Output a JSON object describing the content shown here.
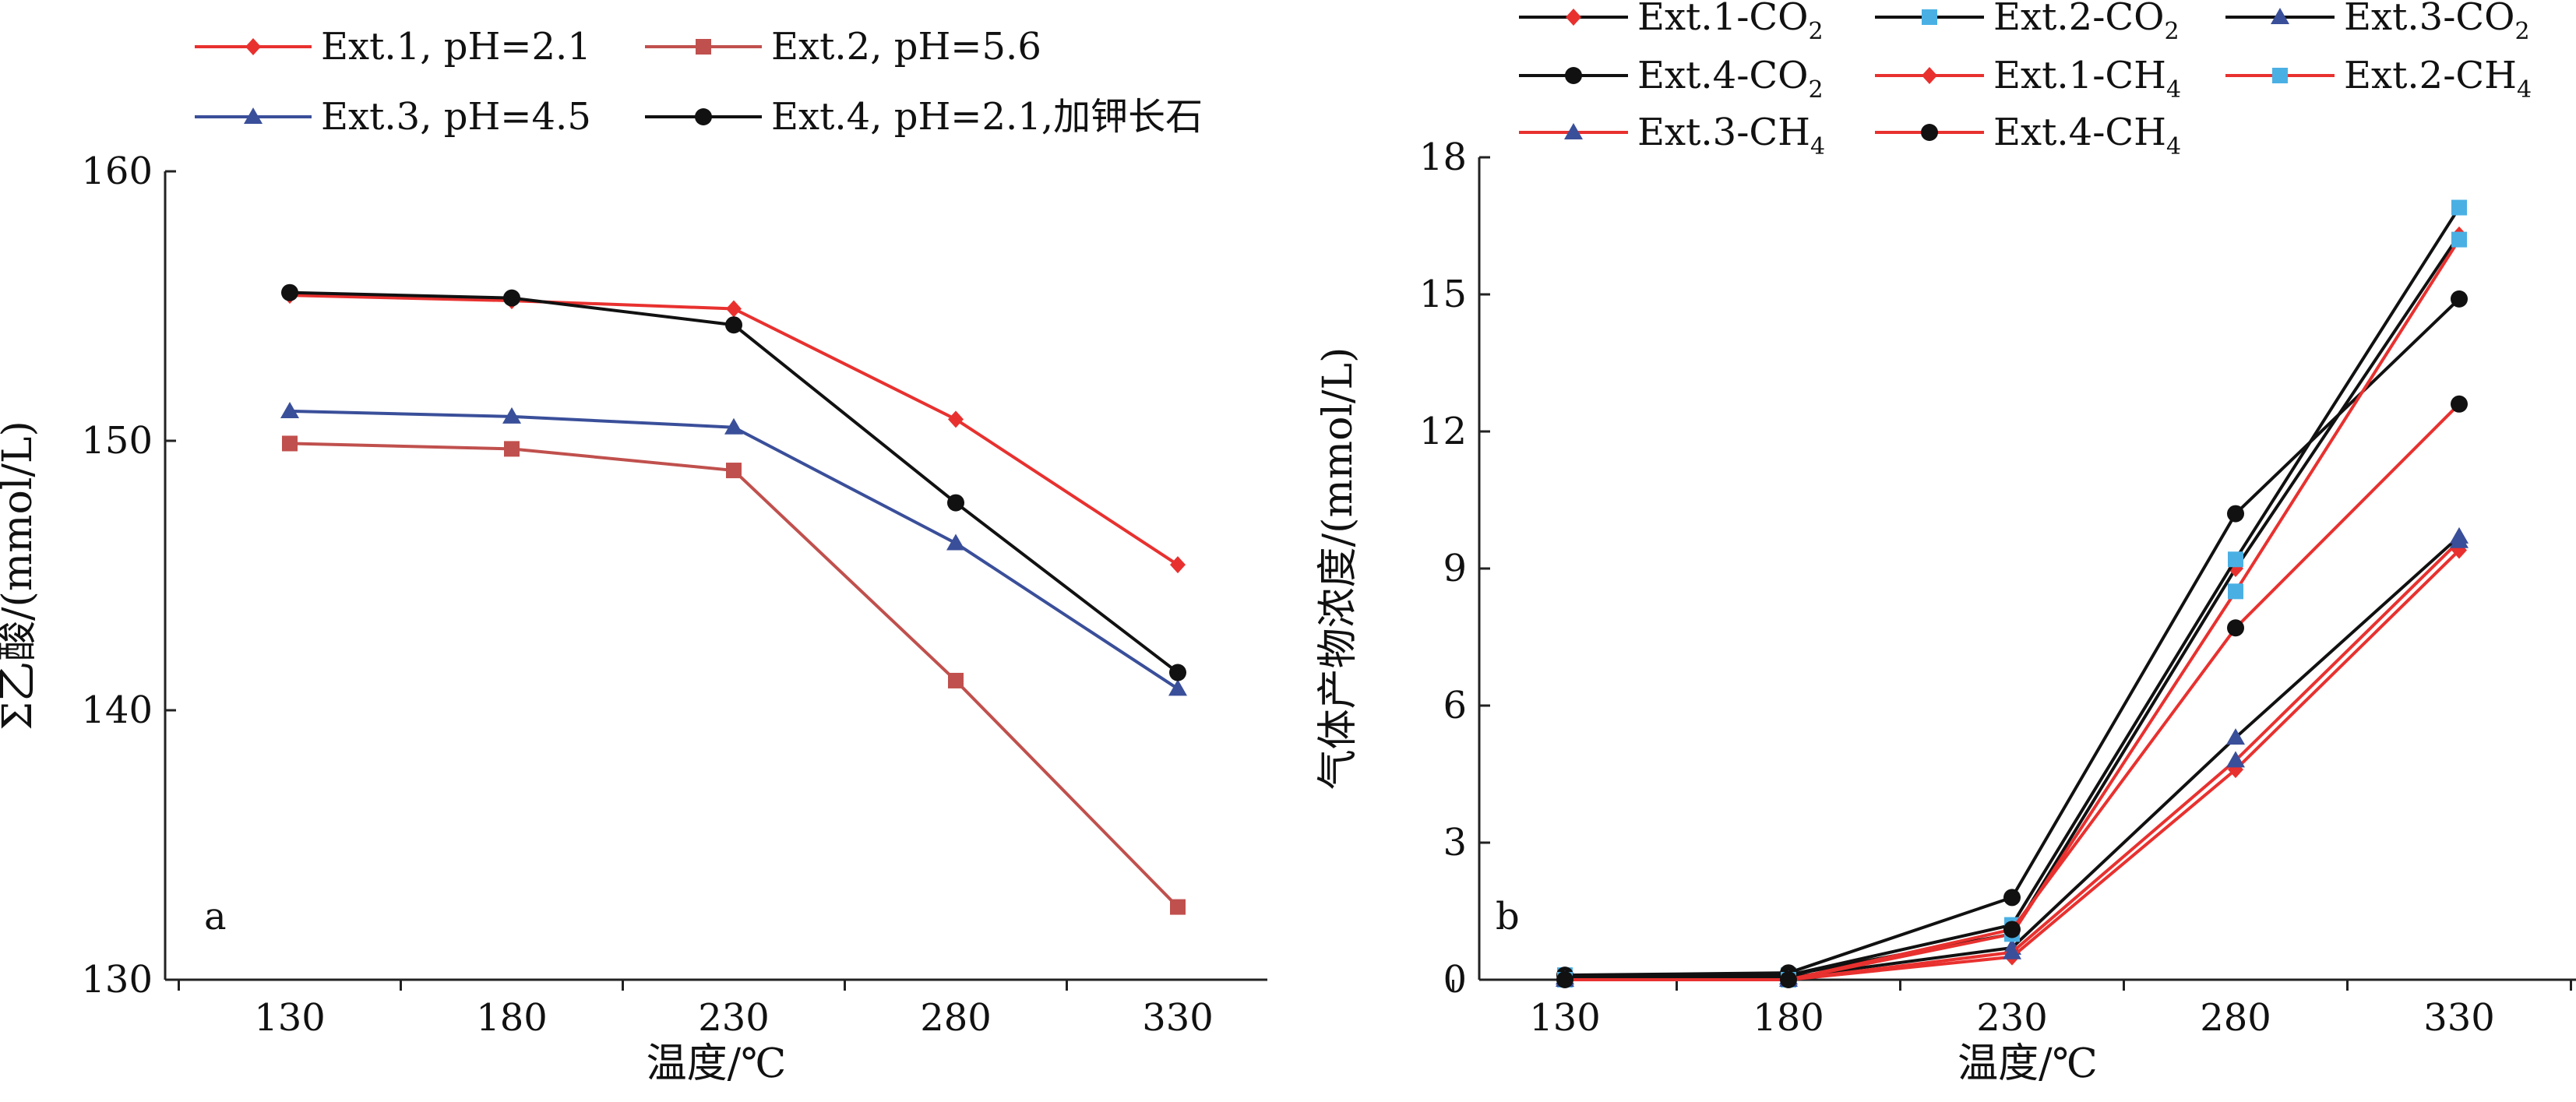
{
  "chart_data": [
    {
      "panel_label": "a",
      "type": "line",
      "xlabel": "温度/℃",
      "ylabel": "Σ乙酸/(mmol/L)",
      "x": [
        130,
        180,
        230,
        280,
        330
      ],
      "x_tick_labels": [
        "130",
        "180",
        "230",
        "280",
        "330"
      ],
      "ylim": [
        130,
        160
      ],
      "y_ticks": [
        130,
        140,
        150,
        160
      ],
      "y_tick_labels": [
        "130",
        "140",
        "150",
        "160"
      ],
      "legend_position": "top",
      "series": [
        {
          "name": "Ext.1, pH=2.1",
          "color": "#e8312f",
          "marker": "diamond",
          "values": [
            155.4,
            155.2,
            154.9,
            150.8,
            145.4
          ]
        },
        {
          "name": "Ext.2, pH=5.6",
          "color": "#c0504d",
          "marker": "square",
          "values": [
            149.9,
            149.7,
            148.9,
            141.1,
            132.7
          ]
        },
        {
          "name": "Ext.3, pH=4.5",
          "color": "#3a4f9a",
          "marker": "triangle",
          "values": [
            151.1,
            150.9,
            150.5,
            146.2,
            140.8
          ]
        },
        {
          "name": "Ext.4, pH=2.1,加钾长石",
          "color": "#111111",
          "marker": "circle",
          "values": [
            155.5,
            155.3,
            154.3,
            147.7,
            141.4
          ]
        }
      ]
    },
    {
      "panel_label": "b",
      "type": "line",
      "xlabel": "温度/℃",
      "ylabel": "气体产物浓度/(mmol/L)",
      "x": [
        130,
        180,
        230,
        280,
        330
      ],
      "x_tick_labels": [
        "130",
        "180",
        "230",
        "280",
        "330"
      ],
      "ylim": [
        0,
        18
      ],
      "y_ticks": [
        0,
        3,
        6,
        9,
        12,
        15,
        18
      ],
      "y_tick_labels": [
        "0",
        "3",
        "6",
        "9",
        "12",
        "15",
        "18"
      ],
      "legend_position": "top",
      "series": [
        {
          "name": "Ext.1-CO",
          "sub": "2",
          "line_color": "#111111",
          "marker_color": "#e8312f",
          "marker": "diamond",
          "values": [
            0.05,
            0.1,
            1.0,
            9.0,
            16.3
          ]
        },
        {
          "name": "Ext.2-CO",
          "sub": "2",
          "line_color": "#111111",
          "marker_color": "#4ab0e4",
          "marker": "square",
          "values": [
            0.1,
            0.1,
            1.2,
            9.2,
            16.9
          ]
        },
        {
          "name": "Ext.3-CO",
          "sub": "2",
          "line_color": "#111111",
          "marker_color": "#3a4f9a",
          "marker": "triangle",
          "values": [
            0.05,
            0.05,
            0.7,
            5.3,
            9.7
          ]
        },
        {
          "name": "Ext.4-CO",
          "sub": "2",
          "line_color": "#111111",
          "marker_color": "#111111",
          "marker": "circle",
          "values": [
            0.1,
            0.15,
            1.8,
            10.2,
            14.9
          ]
        },
        {
          "name": "Ext.1-CH",
          "sub": "4",
          "line_color": "#e8312f",
          "marker_color": "#e8312f",
          "marker": "diamond",
          "values": [
            0.0,
            0.0,
            0.5,
            4.6,
            9.4
          ]
        },
        {
          "name": "Ext.2-CH",
          "sub": "4",
          "line_color": "#e8312f",
          "marker_color": "#4ab0e4",
          "marker": "square",
          "values": [
            0.0,
            0.0,
            1.0,
            8.5,
            16.2
          ]
        },
        {
          "name": "Ext.3-CH",
          "sub": "4",
          "line_color": "#e8312f",
          "marker_color": "#3a4f9a",
          "marker": "triangle",
          "values": [
            0.0,
            0.0,
            0.6,
            4.8,
            9.6
          ]
        },
        {
          "name": "Ext.4-CH",
          "sub": "4",
          "line_color": "#e8312f",
          "marker_color": "#111111",
          "marker": "circle",
          "values": [
            0.0,
            0.0,
            1.1,
            7.7,
            12.6
          ]
        }
      ]
    }
  ]
}
